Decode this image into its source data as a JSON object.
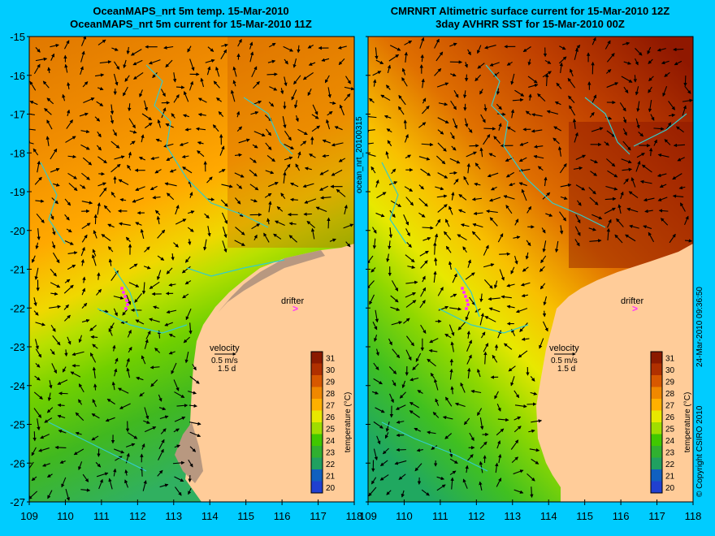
{
  "left_panel": {
    "title_line1": "OceanMAPS_nrt 5m temp. 15-Mar-2010",
    "title_line2": "OceanMAPS_nrt 5m current for 15-Mar-2010 11Z"
  },
  "right_panel": {
    "title_line1": "CMRNRT Altimetric surface current for 15-Mar-2010 12Z",
    "title_line2": "3day AVHRR SST for 15-Mar-2010 00Z"
  },
  "axes": {
    "lon_labels": [
      "109",
      "110",
      "111",
      "112",
      "113",
      "114",
      "115",
      "116",
      "117",
      "118"
    ],
    "lat_labels": [
      "-15",
      "-16",
      "-17",
      "-18",
      "-19",
      "-20",
      "-21",
      "-22",
      "-23",
      "-24",
      "-25",
      "-26",
      "-27"
    ],
    "lon_range": [
      109,
      118
    ],
    "lat_range": [
      -27,
      -15
    ]
  },
  "colorbar": {
    "label": "temperature (°C)",
    "ticks": [
      "31",
      "30",
      "29",
      "28",
      "27",
      "26",
      "25",
      "24",
      "23",
      "22",
      "21",
      "20"
    ],
    "colors": [
      "#8b1a00",
      "#b03000",
      "#d85800",
      "#f08800",
      "#ffb000",
      "#e8e800",
      "#a0dd00",
      "#40c800",
      "#30b030",
      "#20a060",
      "#1060c0",
      "#2040d0"
    ]
  },
  "legend": {
    "velocity_label": "velocity",
    "speed_label": "0.5 m/s",
    "time_label": "1.5 d",
    "drifter_label": "drifter"
  },
  "mid_label": "ocean_nrt_20100315",
  "copyright": "© Copyright CSIRO 2010",
  "timestamp": "24-Mar-2010 09:36:50",
  "colors": {
    "background": "#00ccff",
    "land": "#ffcc99",
    "coast": "#33cccc",
    "drifter": "#ff33ff"
  }
}
